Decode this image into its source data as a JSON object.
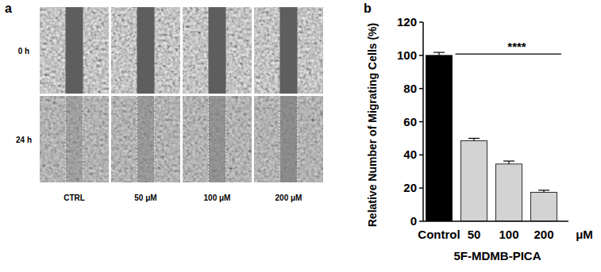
{
  "panel_a": {
    "label": "a",
    "rows": [
      "0 h",
      "24 h"
    ],
    "columns": [
      "CTRL",
      "50 μM",
      "100 μM",
      "200 μM"
    ]
  },
  "chart_data": {
    "type": "bar",
    "panel_label": "b",
    "categories": [
      "Control",
      "50",
      "100",
      "200"
    ],
    "values": [
      100,
      48.5,
      34.5,
      17.5
    ],
    "errors": [
      1.8,
      1.5,
      1.8,
      1.2
    ],
    "colors": [
      "#000000",
      "#d3d3d3",
      "#d3d3d3",
      "#d3d3d3"
    ],
    "ylim": [
      0,
      120
    ],
    "yticks": [
      0,
      20,
      40,
      60,
      80,
      100,
      120
    ],
    "y_label": "Relative Number of Migrating Cells (%)",
    "x_label": "5F-MDMB-PICA",
    "x_unit": "μM",
    "annotation": {
      "text": "****"
    },
    "grid": false
  }
}
